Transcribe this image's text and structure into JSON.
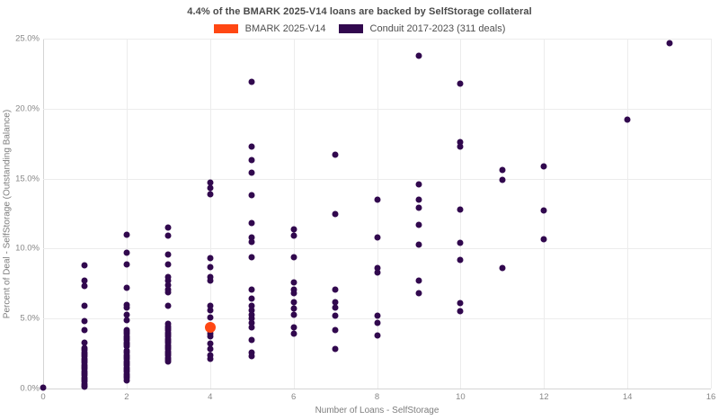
{
  "chart_data": {
    "type": "scatter",
    "title": "4.4% of the BMARK 2025-V14 loans are backed by SelfStorage collateral",
    "xlabel": "Number of Loans - SelfStorage",
    "ylabel": "Percent of Deal - SelfStorage (Outstanding Balance)",
    "xlim": [
      0,
      16
    ],
    "ylim": [
      0,
      25
    ],
    "grid": true,
    "legend_position": "top-center",
    "x_ticks": [
      0,
      2,
      4,
      6,
      8,
      10,
      12,
      14,
      16
    ],
    "x_tick_labels": [
      "0",
      "2",
      "4",
      "6",
      "8",
      "10",
      "12",
      "14",
      "16"
    ],
    "y_ticks": [
      0,
      5,
      10,
      15,
      20,
      25
    ],
    "y_tick_labels": [
      "0.0%",
      "5.0%",
      "10.0%",
      "15.0%",
      "20.0%",
      "25.0%"
    ],
    "series": [
      {
        "name": "BMARK 2025-V14",
        "color": "#ff4713",
        "marker_size": 12,
        "points": [
          [
            4,
            4.4
          ]
        ]
      },
      {
        "name": "Conduit 2017-2023 (311 deals)",
        "color": "#31084e",
        "marker_size": 7,
        "points": [
          [
            0,
            0.05
          ],
          [
            1,
            8.8
          ],
          [
            1,
            7.7
          ],
          [
            1,
            7.3
          ],
          [
            1,
            5.9
          ],
          [
            1,
            4.8
          ],
          [
            1,
            4.2
          ],
          [
            1,
            3.3
          ],
          [
            1,
            2.9
          ],
          [
            1,
            2.75
          ],
          [
            1,
            2.6
          ],
          [
            1,
            2.45
          ],
          [
            1,
            2.3
          ],
          [
            1,
            2.15
          ],
          [
            1,
            2.0
          ],
          [
            1,
            1.85
          ],
          [
            1,
            1.7
          ],
          [
            1,
            1.55
          ],
          [
            1,
            1.4
          ],
          [
            1,
            1.25
          ],
          [
            1,
            1.1
          ],
          [
            1,
            0.95
          ],
          [
            1,
            0.8
          ],
          [
            1,
            0.65
          ],
          [
            1,
            0.5
          ],
          [
            1,
            0.35
          ],
          [
            1,
            0.2
          ],
          [
            1,
            0.1
          ],
          [
            2,
            11.0
          ],
          [
            2,
            9.7
          ],
          [
            2,
            8.9
          ],
          [
            2,
            7.2
          ],
          [
            2,
            6.0
          ],
          [
            2,
            5.8
          ],
          [
            2,
            5.3
          ],
          [
            2,
            4.9
          ],
          [
            2,
            4.2
          ],
          [
            2,
            4.05
          ],
          [
            2,
            3.9
          ],
          [
            2,
            3.75
          ],
          [
            2,
            3.6
          ],
          [
            2,
            3.45
          ],
          [
            2,
            3.3
          ],
          [
            2,
            3.15
          ],
          [
            2,
            3.0
          ],
          [
            2,
            2.7
          ],
          [
            2,
            2.55
          ],
          [
            2,
            2.4
          ],
          [
            2,
            2.25
          ],
          [
            2,
            2.1
          ],
          [
            2,
            1.95
          ],
          [
            2,
            1.8
          ],
          [
            2,
            1.65
          ],
          [
            2,
            1.5
          ],
          [
            2,
            1.35
          ],
          [
            2,
            1.2
          ],
          [
            2,
            1.05
          ],
          [
            2,
            0.9
          ],
          [
            2,
            0.75
          ],
          [
            2,
            0.6
          ],
          [
            3,
            11.5
          ],
          [
            3,
            10.9
          ],
          [
            3,
            9.6
          ],
          [
            3,
            8.9
          ],
          [
            3,
            8.0
          ],
          [
            3,
            7.7
          ],
          [
            3,
            7.4
          ],
          [
            3,
            7.1
          ],
          [
            3,
            6.9
          ],
          [
            3,
            5.9
          ],
          [
            3,
            4.6
          ],
          [
            3,
            4.45
          ],
          [
            3,
            4.3
          ],
          [
            3,
            4.15
          ],
          [
            3,
            4.0
          ],
          [
            3,
            3.85
          ],
          [
            3,
            3.7
          ],
          [
            3,
            3.55
          ],
          [
            3,
            3.4
          ],
          [
            3,
            3.25
          ],
          [
            3,
            3.1
          ],
          [
            3,
            2.95
          ],
          [
            3,
            2.8
          ],
          [
            3,
            2.65
          ],
          [
            3,
            2.5
          ],
          [
            3,
            2.35
          ],
          [
            3,
            2.2
          ],
          [
            3,
            2.05
          ],
          [
            3,
            1.9
          ],
          [
            4,
            14.7
          ],
          [
            4,
            14.3
          ],
          [
            4,
            13.9
          ],
          [
            4,
            9.3
          ],
          [
            4,
            8.7
          ],
          [
            4,
            8.0
          ],
          [
            4,
            7.7
          ],
          [
            4,
            5.9
          ],
          [
            4,
            5.6
          ],
          [
            4,
            5.1
          ],
          [
            4,
            4.1
          ],
          [
            4,
            3.9
          ],
          [
            4,
            3.7
          ],
          [
            4,
            3.2
          ],
          [
            4,
            2.8
          ],
          [
            4,
            2.4
          ],
          [
            4,
            2.1
          ],
          [
            5,
            21.9
          ],
          [
            5,
            17.3
          ],
          [
            5,
            16.3
          ],
          [
            5,
            15.4
          ],
          [
            5,
            13.8
          ],
          [
            5,
            11.8
          ],
          [
            5,
            10.8
          ],
          [
            5,
            10.5
          ],
          [
            5,
            9.4
          ],
          [
            5,
            7.1
          ],
          [
            5,
            6.4
          ],
          [
            5,
            5.9
          ],
          [
            5,
            5.6
          ],
          [
            5,
            5.3
          ],
          [
            5,
            5.0
          ],
          [
            5,
            4.7
          ],
          [
            5,
            4.4
          ],
          [
            5,
            3.5
          ],
          [
            5,
            2.6
          ],
          [
            5,
            2.3
          ],
          [
            6,
            11.4
          ],
          [
            6,
            10.9
          ],
          [
            6,
            9.4
          ],
          [
            6,
            7.6
          ],
          [
            6,
            7.1
          ],
          [
            6,
            6.8
          ],
          [
            6,
            6.2
          ],
          [
            6,
            5.7
          ],
          [
            6,
            5.3
          ],
          [
            6,
            4.4
          ],
          [
            6,
            3.9
          ],
          [
            7,
            16.7
          ],
          [
            7,
            12.5
          ],
          [
            7,
            7.1
          ],
          [
            7,
            6.2
          ],
          [
            7,
            5.8
          ],
          [
            7,
            5.2
          ],
          [
            7,
            4.2
          ],
          [
            7,
            2.8
          ],
          [
            8,
            13.5
          ],
          [
            8,
            10.8
          ],
          [
            8,
            8.6
          ],
          [
            8,
            8.3
          ],
          [
            8,
            5.2
          ],
          [
            8,
            4.7
          ],
          [
            8,
            3.8
          ],
          [
            9,
            23.8
          ],
          [
            9,
            14.6
          ],
          [
            9,
            13.5
          ],
          [
            9,
            12.9
          ],
          [
            9,
            11.7
          ],
          [
            9,
            10.3
          ],
          [
            9,
            7.7
          ],
          [
            9,
            6.8
          ],
          [
            10,
            21.8
          ],
          [
            10,
            17.6
          ],
          [
            10,
            17.3
          ],
          [
            10,
            12.8
          ],
          [
            10,
            10.4
          ],
          [
            10,
            9.2
          ],
          [
            10,
            6.1
          ],
          [
            10,
            5.5
          ],
          [
            11,
            15.6
          ],
          [
            11,
            14.9
          ],
          [
            11,
            8.6
          ],
          [
            12,
            15.9
          ],
          [
            12,
            12.7
          ],
          [
            12,
            10.7
          ],
          [
            14,
            19.2
          ],
          [
            15,
            24.7
          ]
        ]
      }
    ]
  }
}
